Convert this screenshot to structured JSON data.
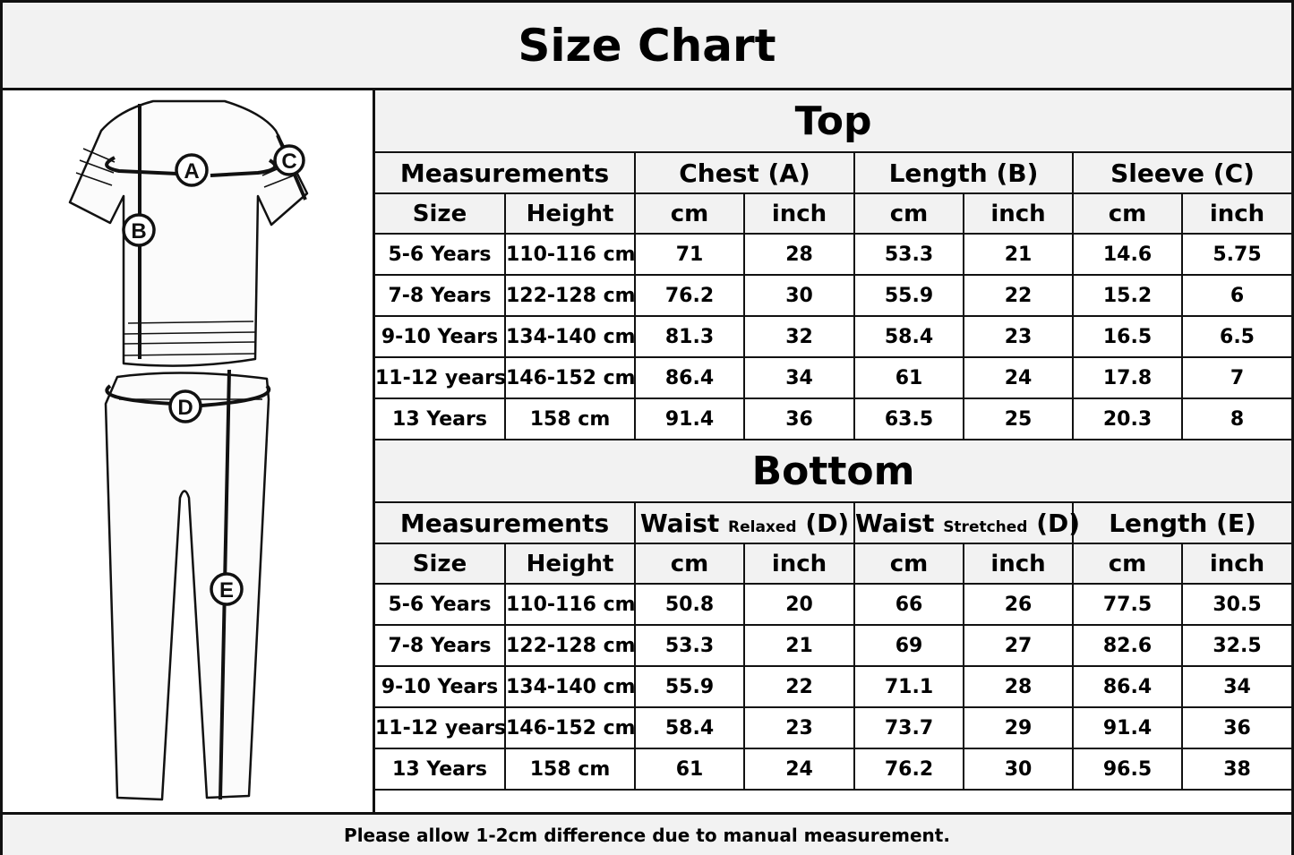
{
  "title": "Size Chart",
  "illustration": {
    "labels": [
      "A",
      "B",
      "C",
      "D",
      "E"
    ]
  },
  "top": {
    "title": "Top",
    "headers": [
      "Measurements",
      "Chest (A)",
      "Length (B)",
      "Sleeve (C)"
    ],
    "subheaders": [
      "Size",
      "Height",
      "cm",
      "inch",
      "cm",
      "inch",
      "cm",
      "inch"
    ],
    "rows": [
      [
        "5-6 Years",
        "110-116 cm",
        "71",
        "28",
        "53.3",
        "21",
        "14.6",
        "5.75"
      ],
      [
        "7-8 Years",
        "122-128 cm",
        "76.2",
        "30",
        "55.9",
        "22",
        "15.2",
        "6"
      ],
      [
        "9-10 Years",
        "134-140 cm",
        "81.3",
        "32",
        "58.4",
        "23",
        "16.5",
        "6.5"
      ],
      [
        "11-12 years",
        "146-152 cm",
        "86.4",
        "34",
        "61",
        "24",
        "17.8",
        "7"
      ],
      [
        "13 Years",
        "158 cm",
        "91.4",
        "36",
        "63.5",
        "25",
        "20.3",
        "8"
      ]
    ]
  },
  "bottom": {
    "title": "Bottom",
    "headers": [
      {
        "main": "Measurements"
      },
      {
        "main": "Waist",
        "small": "Relaxed",
        "suffix": "(D)"
      },
      {
        "main": "Waist",
        "small": "Stretched",
        "suffix": "(D)"
      },
      {
        "main": "Length (E)"
      }
    ],
    "subheaders": [
      "Size",
      "Height",
      "cm",
      "inch",
      "cm",
      "inch",
      "cm",
      "inch"
    ],
    "rows": [
      [
        "5-6 Years",
        "110-116 cm",
        "50.8",
        "20",
        "66",
        "26",
        "77.5",
        "30.5"
      ],
      [
        "7-8 Years",
        "122-128 cm",
        "53.3",
        "21",
        "69",
        "27",
        "82.6",
        "32.5"
      ],
      [
        "9-10 Years",
        "134-140 cm",
        "55.9",
        "22",
        "71.1",
        "28",
        "86.4",
        "34"
      ],
      [
        "11-12 years",
        "146-152 cm",
        "58.4",
        "23",
        "73.7",
        "29",
        "91.4",
        "36"
      ],
      [
        "13 Years",
        "158 cm",
        "61",
        "24",
        "76.2",
        "30",
        "96.5",
        "38"
      ]
    ]
  },
  "footer": "Please allow 1-2cm difference due to manual measurement."
}
